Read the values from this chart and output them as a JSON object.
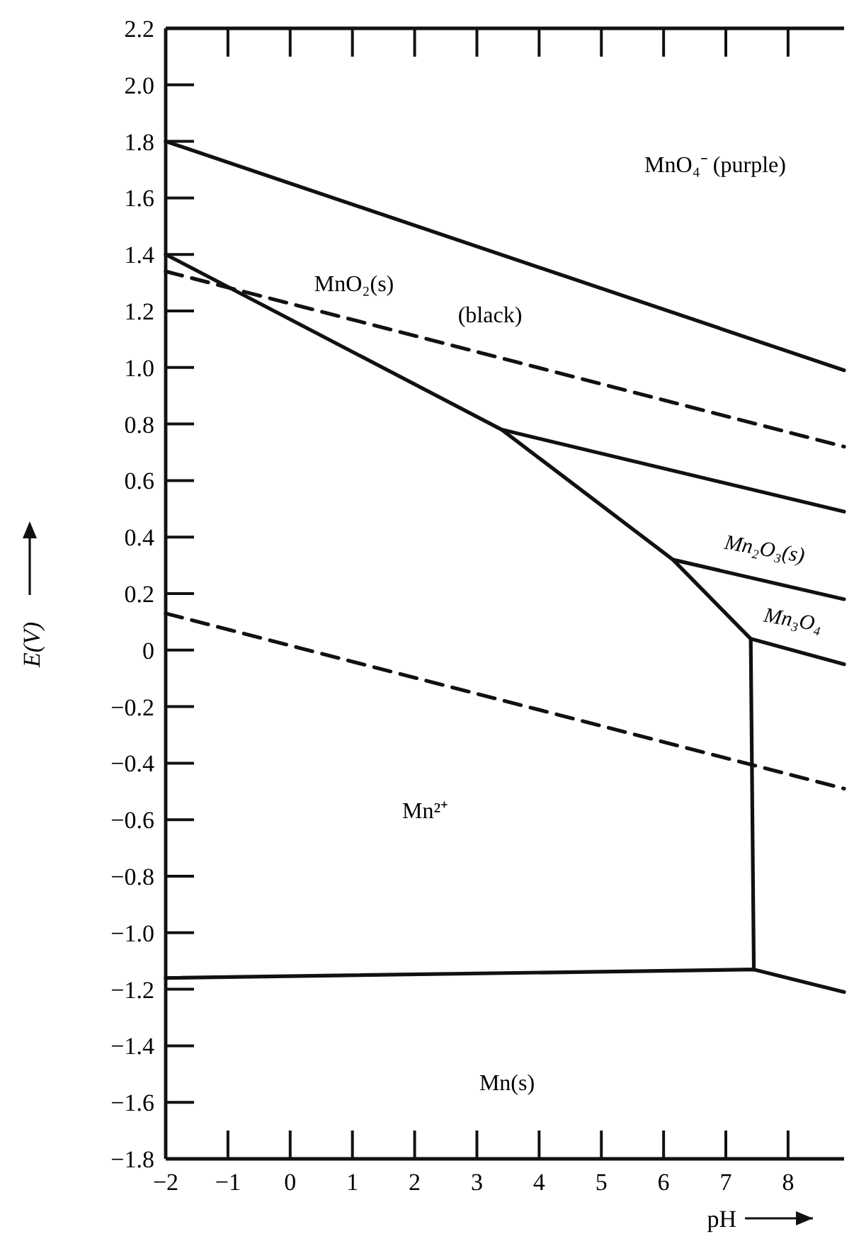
{
  "chart_data": {
    "type": "line",
    "xlabel": "pH",
    "ylabel": "E(V)",
    "xlim": [
      -2,
      8.9
    ],
    "ylim": [
      -1.8,
      2.2
    ],
    "xticks": [
      {
        "value": -2,
        "label": "−2"
      },
      {
        "value": -1,
        "label": "−1"
      },
      0,
      1,
      2,
      3,
      4,
      5,
      6,
      7,
      8
    ],
    "yticks": [
      {
        "value": -1.8,
        "label": "−1.8"
      },
      {
        "value": -1.6,
        "label": "−1.6"
      },
      {
        "value": -1.4,
        "label": "−1.4"
      },
      {
        "value": -1.2,
        "label": "−1.2"
      },
      {
        "value": -1.0,
        "label": "−1.0"
      },
      {
        "value": -0.8,
        "label": "−0.8"
      },
      {
        "value": -0.6,
        "label": "−0.6"
      },
      {
        "value": -0.4,
        "label": "−0.4"
      },
      {
        "value": -0.2,
        "label": "−0.2"
      },
      0,
      {
        "value": 0.2,
        "label": "0.2"
      },
      {
        "value": 0.4,
        "label": "0.4"
      },
      {
        "value": 0.6,
        "label": "0.6"
      },
      {
        "value": 0.8,
        "label": "0.8"
      },
      {
        "value": 1.0,
        "label": "1.0"
      },
      {
        "value": 1.2,
        "label": "1.2"
      },
      {
        "value": 1.4,
        "label": "1.4"
      },
      {
        "value": 1.6,
        "label": "1.6"
      },
      {
        "value": 1.8,
        "label": "1.8"
      },
      {
        "value": 2.0,
        "label": "2.0"
      },
      {
        "value": 2.2,
        "label": "2.2"
      }
    ],
    "grid": false,
    "marker": "none",
    "series": [
      {
        "color": "#111111",
        "x": [
          -2,
          8.9
        ],
        "values": [
          1.8,
          0.99
        ]
      },
      {
        "color": "#111111",
        "x": [
          -2,
          3.4,
          6.15,
          7.4,
          7.45
        ],
        "values": [
          1.4,
          0.78,
          0.32,
          0.04,
          -1.13
        ]
      },
      {
        "color": "#111111",
        "x": [
          3.4,
          8.9
        ],
        "values": [
          0.78,
          0.49
        ]
      },
      {
        "color": "#111111",
        "x": [
          6.15,
          8.9
        ],
        "values": [
          0.32,
          0.18
        ]
      },
      {
        "color": "#111111",
        "x": [
          7.4,
          8.9
        ],
        "values": [
          0.04,
          -0.05
        ]
      },
      {
        "color": "#111111",
        "x": [
          -2,
          7.45,
          8.9
        ],
        "values": [
          -1.16,
          -1.13,
          -1.21
        ]
      },
      {
        "color": "#111111",
        "line_style": "dashed",
        "x": [
          -2,
          8.9
        ],
        "values": [
          1.34,
          0.72
        ]
      },
      {
        "color": "#111111",
        "line_style": "dashed",
        "x": [
          -2,
          8.9
        ],
        "values": [
          0.13,
          -0.49
        ]
      }
    ],
    "annotations": [
      "MnO₄⁻ (purple)",
      "MnO₂(s)",
      "(black)",
      "Mn₂O₃(s)",
      "Mn₃O₄",
      "Mn²⁺",
      "Mn(s)"
    ]
  }
}
